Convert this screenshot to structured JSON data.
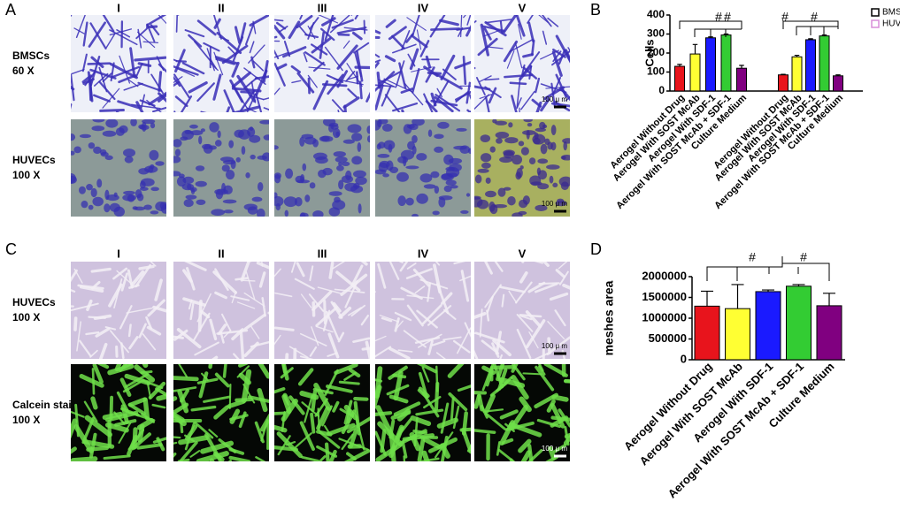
{
  "panel_labels": [
    "A",
    "B",
    "C",
    "D"
  ],
  "grid_a": {
    "columns": [
      "I",
      "II",
      "III",
      "IV",
      "V"
    ],
    "rows": [
      {
        "lines": [
          "BMSCs",
          "60 X"
        ]
      },
      {
        "lines": [
          "HUVECs",
          "100 X"
        ]
      }
    ],
    "scale_label": "100 μ m"
  },
  "grid_c": {
    "columns": [
      "I",
      "II",
      "III",
      "IV",
      "V"
    ],
    "rows": [
      {
        "lines": [
          "HUVECs",
          "100 X"
        ]
      },
      {
        "lines": [
          "Calcein stain",
          "100 X"
        ]
      }
    ],
    "scale_label": "100 μ m"
  },
  "chart_data": [
    {
      "type": "bar",
      "y_label": "Cells",
      "categories": [
        "Aerogel Without Drug",
        "Aerogel With SOST McAb",
        "Aerogel With SDF-1",
        "Aerogel With SOST McAb + SDF-1",
        "Culture Medium"
      ],
      "series": [
        {
          "name": "BMSCs",
          "color": "#000000",
          "values": [
            130,
            195,
            280,
            295,
            120
          ],
          "errors": [
            10,
            50,
            5,
            5,
            15
          ]
        },
        {
          "name": "HUVECs",
          "color": "#d98fd9",
          "values": [
            85,
            180,
            270,
            290,
            80
          ],
          "errors": [
            3,
            8,
            5,
            5,
            5
          ]
        }
      ],
      "bar_colors": [
        "#e8141c",
        "#ffff33",
        "#1a1aff",
        "#33cc33",
        "#800080"
      ],
      "ylim": [
        0,
        400
      ],
      "yticks": [
        0,
        100,
        200,
        300,
        400
      ],
      "annotations": [
        "#",
        "#",
        "#",
        "#"
      ]
    },
    {
      "type": "bar",
      "y_label": "meshes area",
      "categories": [
        "Aerogel Without Drug",
        "Aerogel With SOST McAb",
        "Aerogel With SDF-1",
        "Aerogel With SOST McAb + SDF-1",
        "Culture Medium"
      ],
      "values": [
        1290000,
        1230000,
        1640000,
        1770000,
        1300000
      ],
      "errors": [
        360000,
        580000,
        40000,
        40000,
        300000
      ],
      "bar_colors": [
        "#e8141c",
        "#ffff33",
        "#1a1aff",
        "#33cc33",
        "#800080"
      ],
      "ylim": [
        0,
        2000000
      ],
      "yticks": [
        0,
        500000,
        1000000,
        1500000,
        2000000
      ],
      "annotations": [
        "#",
        "#"
      ]
    }
  ]
}
